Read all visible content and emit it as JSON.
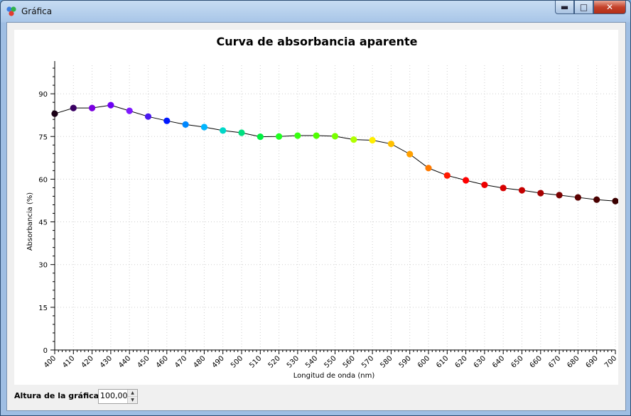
{
  "window": {
    "title": "Gráfica"
  },
  "footer": {
    "height_label": "Altura de la gráfica:",
    "height_value": "100,00"
  },
  "chart_data": {
    "type": "line",
    "title": "Curva de absorbancia aparente",
    "xlabel": "Longitud de onda (nm)",
    "ylabel": "Absorbancia (%)",
    "xlim": [
      400,
      700
    ],
    "ylim": [
      0,
      100
    ],
    "xticks": [
      400,
      410,
      420,
      430,
      440,
      450,
      460,
      470,
      480,
      490,
      500,
      510,
      520,
      530,
      540,
      550,
      560,
      570,
      580,
      590,
      600,
      610,
      620,
      630,
      640,
      650,
      660,
      670,
      680,
      690,
      700
    ],
    "yticks": [
      0,
      15,
      30,
      45,
      60,
      75,
      90
    ],
    "grid": true,
    "series": [
      {
        "x": [
          400,
          410,
          420,
          430,
          440,
          450,
          460,
          470,
          480,
          490,
          500,
          510,
          520,
          530,
          540,
          550,
          560,
          570,
          580,
          590,
          600,
          610,
          620,
          630,
          640,
          650,
          660,
          670,
          680,
          690,
          700
        ],
        "y": [
          83.0,
          85.0,
          85.0,
          86.0,
          84.0,
          82.0,
          80.5,
          79.2,
          78.3,
          77.1,
          76.3,
          74.9,
          75.0,
          75.3,
          75.3,
          75.1,
          73.9,
          73.7,
          72.4,
          68.8,
          63.9,
          61.3,
          59.6,
          58.0,
          56.9,
          56.1,
          55.1,
          54.4,
          53.6,
          52.8,
          52.3
        ],
        "marker_colors": [
          "#1a0016",
          "#3a0063",
          "#7a00e0",
          "#6e00f5",
          "#7f1aff",
          "#4a1af0",
          "#0018ff",
          "#0088ff",
          "#00b6ff",
          "#00d8c8",
          "#00e080",
          "#00f040",
          "#20ff20",
          "#38ff10",
          "#50ff00",
          "#78ff00",
          "#b0ff00",
          "#ffee00",
          "#ffc000",
          "#ffa000",
          "#ff7a00",
          "#ff1a00",
          "#ff0000",
          "#ee0000",
          "#d80000",
          "#c40000",
          "#a60000",
          "#7a0000",
          "#5a0000",
          "#4a0000",
          "#3a0000"
        ]
      }
    ]
  }
}
